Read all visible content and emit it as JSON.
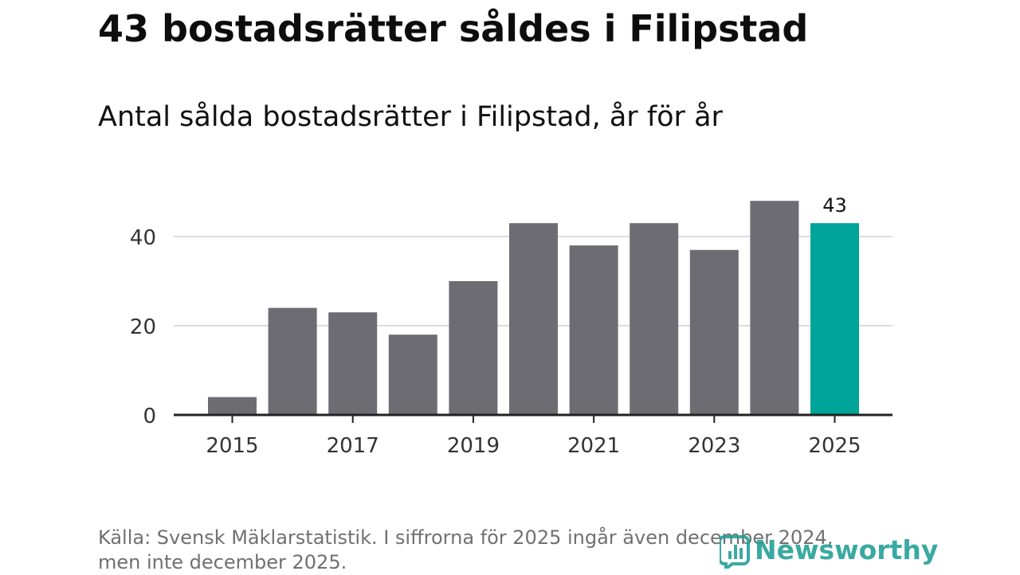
{
  "title": "43 bostadsrätter såldes i Filipstad",
  "subtitle": "Antal sålda bostadsrätter i Filipstad, år för år",
  "source_line1": "Källa: Svensk Mäklarstatistik. I siffrorna för 2025 ingår även december 2024,",
  "source_line2": "men inte december 2025.",
  "brand_name": "Newsworthy",
  "brand_icon": "bar-chart-logo-icon",
  "colors": {
    "bar": "#6d6c72",
    "highlight": "#00a499",
    "grid": "#dcdcdc",
    "axis": "#222222",
    "brand": "#1f9e96"
  },
  "chart_data": {
    "type": "bar",
    "title": "43 bostadsrätter såldes i Filipstad",
    "subtitle": "Antal sålda bostadsrätter i Filipstad, år för år",
    "categories": [
      "2015",
      "2016",
      "2017",
      "2018",
      "2019",
      "2020",
      "2021",
      "2022",
      "2023",
      "2024",
      "2025"
    ],
    "values": [
      4,
      24,
      23,
      18,
      30,
      43,
      38,
      43,
      37,
      48,
      43
    ],
    "highlight_index": 10,
    "data_labels": [
      {
        "index": 10,
        "text": "43"
      }
    ],
    "x_tick_labels": [
      "2015",
      "2017",
      "2019",
      "2021",
      "2023",
      "2025"
    ],
    "y_ticks": [
      0,
      20,
      40
    ],
    "y_tick_labels": [
      "0",
      "20",
      "40"
    ],
    "ylim": [
      0,
      50
    ],
    "xlabel": "",
    "ylabel": "",
    "grid": true
  }
}
